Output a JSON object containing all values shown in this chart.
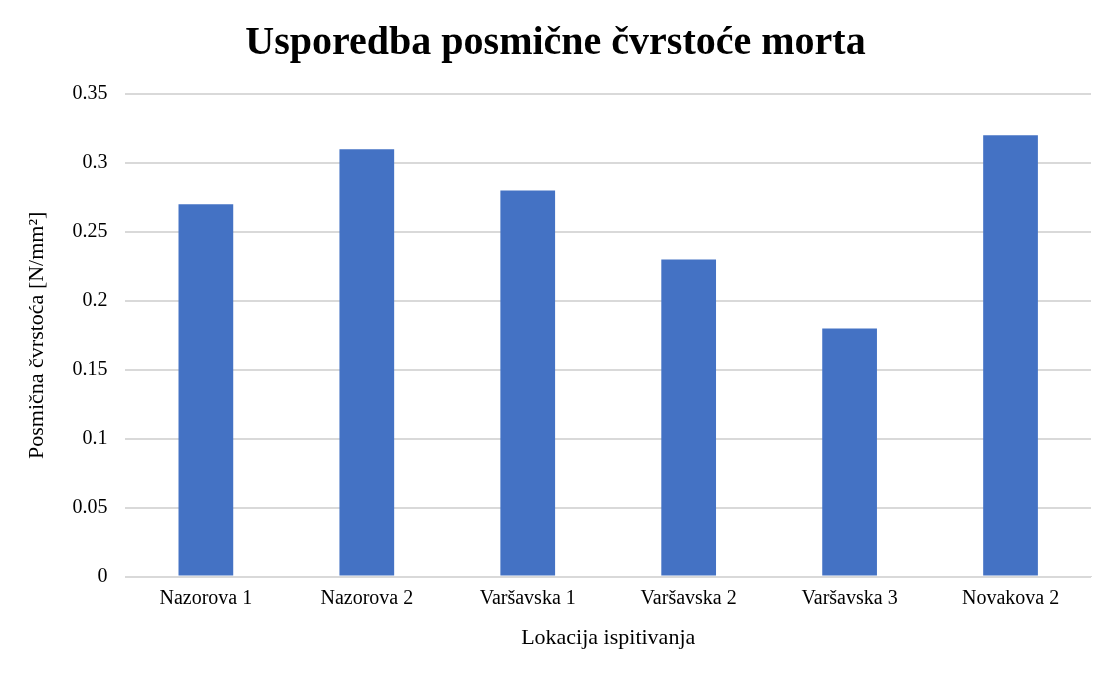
{
  "chart_data": {
    "type": "bar",
    "title": "Usporedba posmične čvrstoće morta",
    "xlabel": "Lokacija ispitivanja",
    "ylabel": "Posmična čvrstoća [N/mm²]",
    "categories": [
      "Nazorova 1",
      "Nazorova 2",
      "Varšavska 1",
      "Varšavska 2",
      "Varšavska 3",
      "Novakova 2"
    ],
    "values": [
      0.27,
      0.31,
      0.28,
      0.23,
      0.18,
      0.32
    ],
    "color": "#4472c4",
    "ylim": [
      0,
      0.35
    ],
    "yticks": [
      0,
      0.05,
      0.1,
      0.15,
      0.2,
      0.25,
      0.3,
      0.35
    ],
    "grid": "y",
    "legend": false
  }
}
